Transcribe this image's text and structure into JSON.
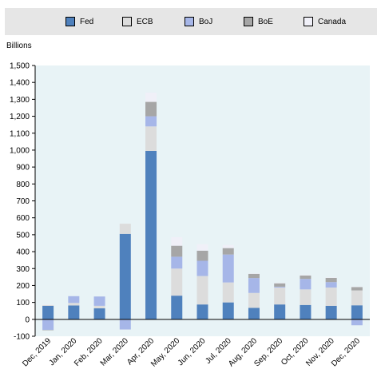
{
  "chart_data": {
    "type": "bar",
    "stacked": true,
    "unit_label": "Billions",
    "categories": [
      "Dec, 2019",
      "Jan, 2020",
      "Feb, 2020",
      "Mar, 2020",
      "Apr, 2020",
      "May, 2020",
      "Jun, 2020",
      "Jul, 2020",
      "Aug, 2020",
      "Sep, 2020",
      "Oct, 2020",
      "Nov, 2020",
      "Dec, 2020"
    ],
    "series": [
      {
        "name": "Fed",
        "color": "#4f81bd",
        "values": [
          80,
          82,
          65,
          505,
          995,
          140,
          88,
          100,
          68,
          88,
          85,
          80,
          83
        ]
      },
      {
        "name": "ECB",
        "color": "#dcdcdc",
        "values": [
          5,
          15,
          15,
          60,
          145,
          160,
          168,
          118,
          88,
          100,
          92,
          108,
          88
        ]
      },
      {
        "name": "BoJ",
        "color": "#a6b6e8",
        "values": [
          -62,
          40,
          55,
          -60,
          60,
          70,
          90,
          165,
          88,
          5,
          62,
          32,
          -35
        ]
      },
      {
        "name": "BoE",
        "color": "#a6a6a6",
        "values": [
          -2,
          0,
          0,
          0,
          85,
          65,
          60,
          38,
          25,
          20,
          20,
          25,
          20
        ]
      },
      {
        "name": "Canada",
        "color": "#f0f0f8",
        "values": [
          3,
          0,
          0,
          0,
          55,
          50,
          38,
          18,
          3,
          3,
          3,
          3,
          3
        ]
      }
    ],
    "ylim": [
      -100,
      1500
    ],
    "yticks": [
      -100,
      0,
      100,
      200,
      300,
      400,
      500,
      600,
      700,
      800,
      900,
      1000,
      1100,
      1200,
      1300,
      1400,
      1500
    ],
    "ytick_labels": [
      "-100",
      "0",
      "100",
      "200",
      "300",
      "400",
      "500",
      "600",
      "700",
      "800",
      "900",
      "1,000",
      "1,100",
      "1,200",
      "1,300",
      "1,400",
      "1,500"
    ],
    "plot_background": "#e8f3f6",
    "legend_position": "top"
  }
}
